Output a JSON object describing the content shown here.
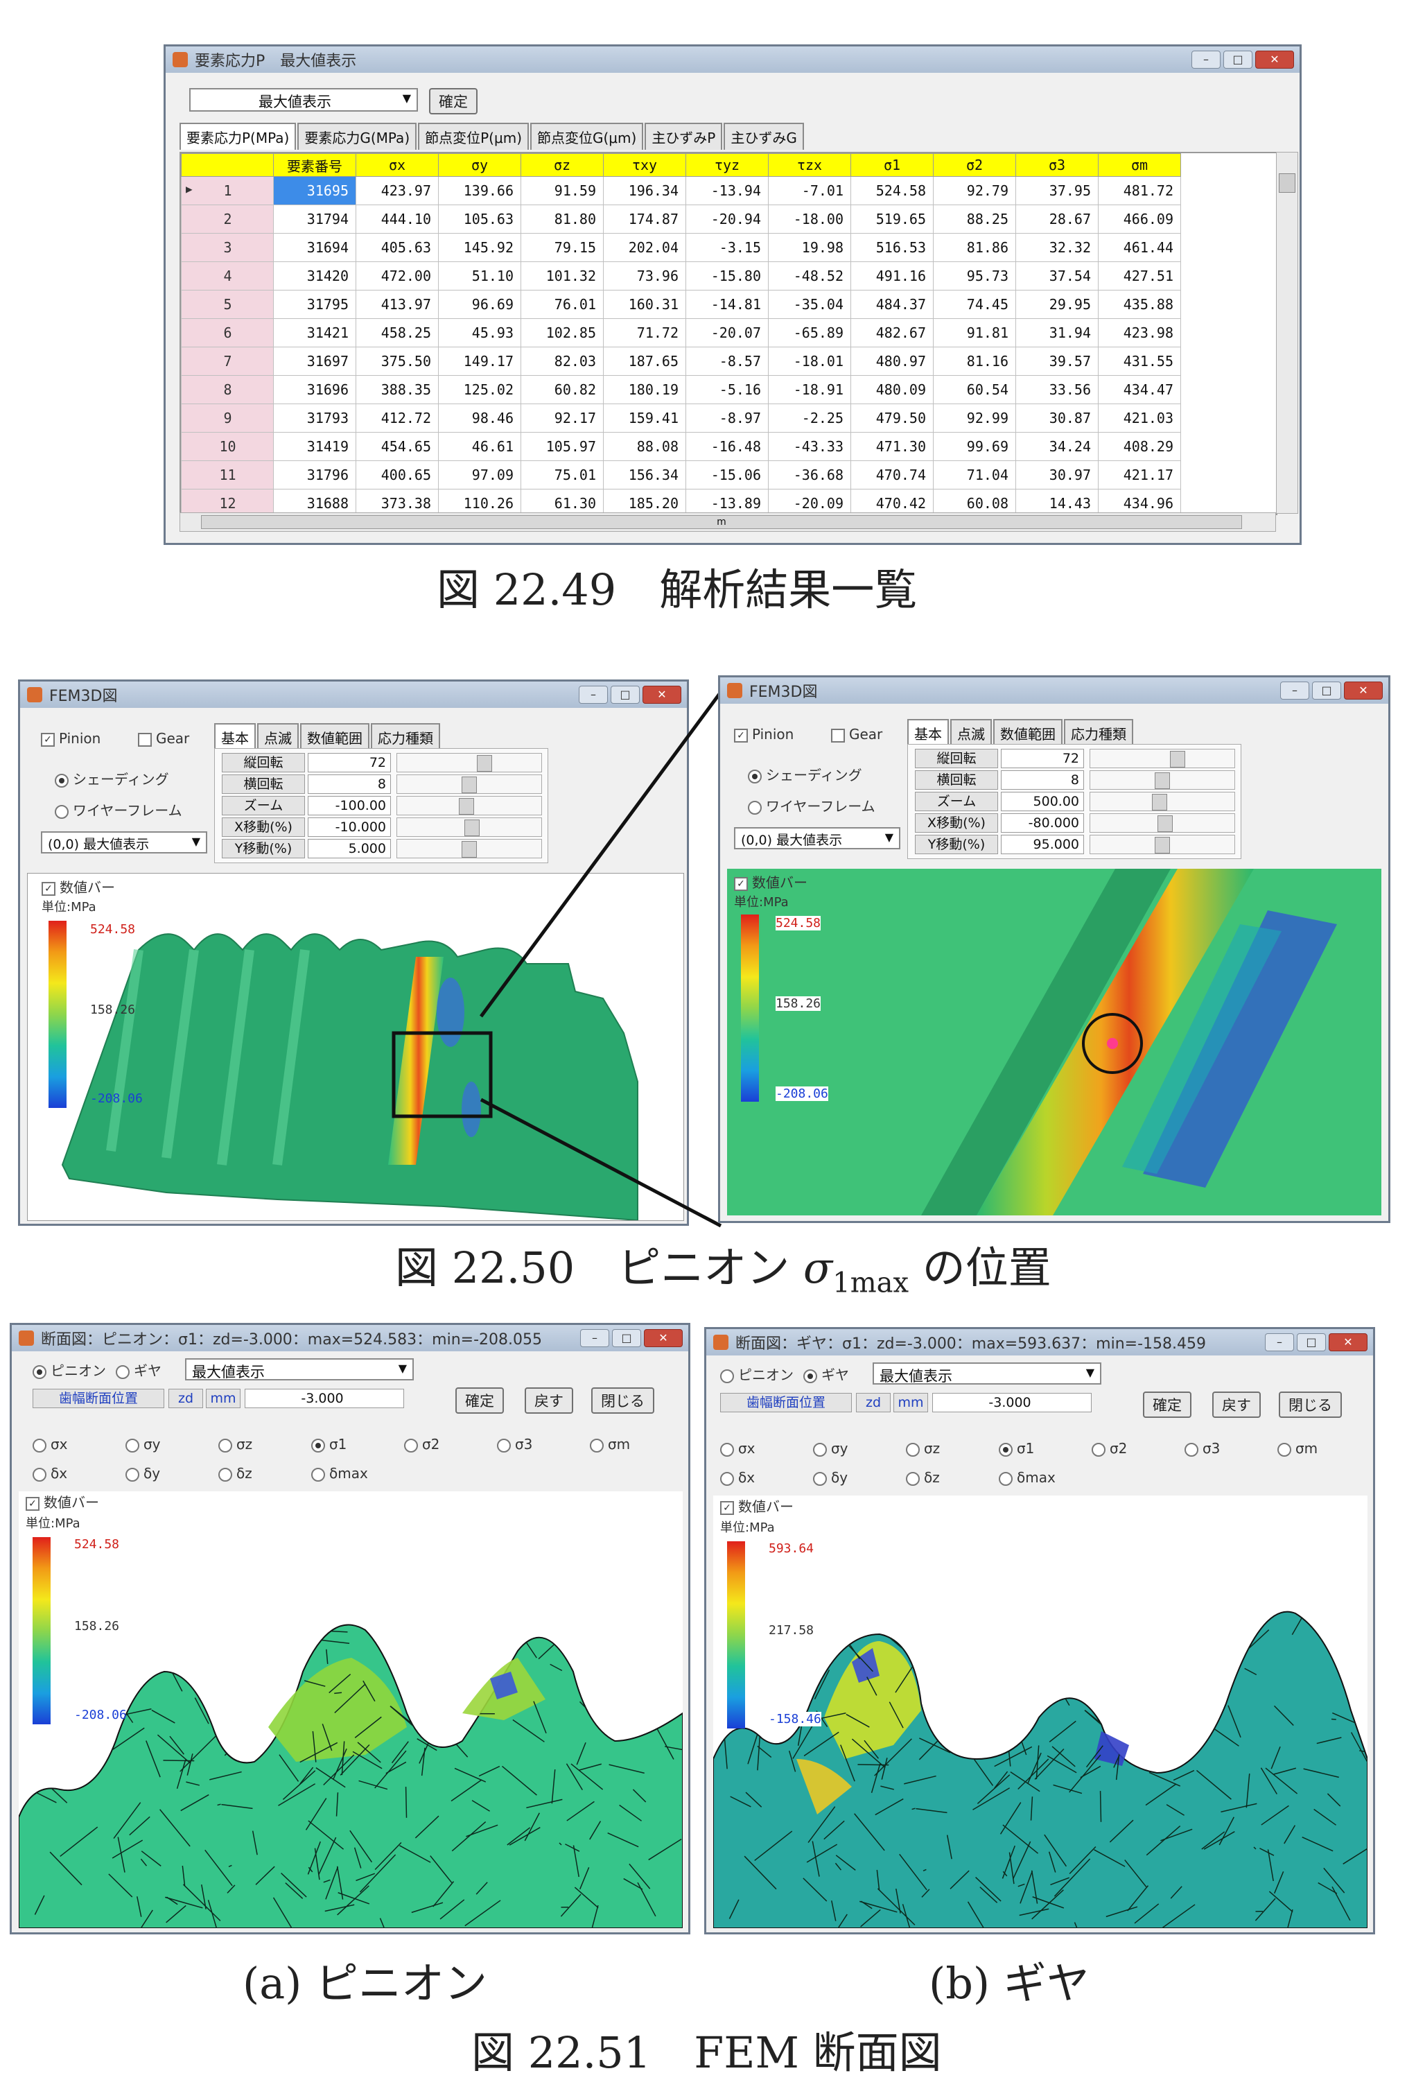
{
  "fig49": {
    "title": "要素応力P　最大値表示",
    "combo": "最大値表示",
    "confirm": "確定",
    "tabs": [
      "要素応力P(MPa)",
      "要素応力G(MPa)",
      "節点変位P(μm)",
      "節点変位G(μm)",
      "主ひずみP",
      "主ひずみG"
    ],
    "headers": [
      "",
      "要素番号",
      "σx",
      "σy",
      "σz",
      "τxy",
      "τyz",
      "τzx",
      "σ1",
      "σ2",
      "σ3",
      "σm"
    ],
    "rows": [
      [
        "1",
        "31695",
        "423.97",
        "139.66",
        "91.59",
        "196.34",
        "-13.94",
        "-7.01",
        "524.58",
        "92.79",
        "37.95",
        "481.72"
      ],
      [
        "2",
        "31794",
        "444.10",
        "105.63",
        "81.80",
        "174.87",
        "-20.94",
        "-18.00",
        "519.65",
        "88.25",
        "28.67",
        "466.09"
      ],
      [
        "3",
        "31694",
        "405.63",
        "145.92",
        "79.15",
        "202.04",
        "-3.15",
        "19.98",
        "516.53",
        "81.86",
        "32.32",
        "461.44"
      ],
      [
        "4",
        "31420",
        "472.00",
        "51.10",
        "101.32",
        "73.96",
        "-15.80",
        "-48.52",
        "491.16",
        "95.73",
        "37.54",
        "427.51"
      ],
      [
        "5",
        "31795",
        "413.97",
        "96.69",
        "76.01",
        "160.31",
        "-14.81",
        "-35.04",
        "484.37",
        "74.45",
        "29.95",
        "435.88"
      ],
      [
        "6",
        "31421",
        "458.25",
        "45.93",
        "102.85",
        "71.72",
        "-20.07",
        "-65.89",
        "482.67",
        "91.81",
        "31.94",
        "423.98"
      ],
      [
        "7",
        "31697",
        "375.50",
        "149.17",
        "82.03",
        "187.65",
        "-8.57",
        "-18.01",
        "480.97",
        "81.16",
        "39.57",
        "431.55"
      ],
      [
        "8",
        "31696",
        "388.35",
        "125.02",
        "60.82",
        "180.19",
        "-5.16",
        "-18.91",
        "480.09",
        "60.54",
        "33.56",
        "434.47"
      ],
      [
        "9",
        "31793",
        "412.72",
        "98.46",
        "92.17",
        "159.41",
        "-8.97",
        "-2.25",
        "479.50",
        "92.99",
        "30.87",
        "421.03"
      ],
      [
        "10",
        "31419",
        "454.65",
        "46.61",
        "105.97",
        "88.08",
        "-16.48",
        "-43.33",
        "471.30",
        "99.69",
        "34.24",
        "408.29"
      ],
      [
        "11",
        "31796",
        "400.65",
        "97.09",
        "75.01",
        "156.34",
        "-15.06",
        "-36.68",
        "470.74",
        "71.04",
        "30.97",
        "421.17"
      ],
      [
        "12",
        "31688",
        "373.38",
        "110.26",
        "61.30",
        "185.20",
        "-13.89",
        "-20.09",
        "470.42",
        "60.08",
        "14.43",
        "434.96"
      ]
    ],
    "hscroll_mark": "m",
    "caption": "図 22.49　解析結果一覧"
  },
  "fig50": {
    "left": {
      "title": "FEM3D図",
      "pinion": "Pinion",
      "gear": "Gear",
      "shading": "シェーディング",
      "wire": "ワイヤーフレーム",
      "combo": "(0,0) 最大値表示",
      "tabs": [
        "基本",
        "点滅",
        "数値範囲",
        "応力種類"
      ],
      "fields": [
        {
          "name": "縦回転",
          "value": "72"
        },
        {
          "name": "横回転",
          "value": "8"
        },
        {
          "name": "ズーム",
          "value": "-100.00"
        },
        {
          "name": "X移動(%)",
          "value": "-10.000"
        },
        {
          "name": "Y移動(%)",
          "value": "5.000"
        }
      ],
      "valuebar": "数値バー",
      "unit": "単位:MPa",
      "cmax": "524.58",
      "cmid": "158.26",
      "cmin": "-208.06"
    },
    "right": {
      "title": "FEM3D図",
      "pinion": "Pinion",
      "gear": "Gear",
      "shading": "シェーディング",
      "wire": "ワイヤーフレーム",
      "combo": "(0,0) 最大値表示",
      "tabs": [
        "基本",
        "点滅",
        "数値範囲",
        "応力種類"
      ],
      "fields": [
        {
          "name": "縦回転",
          "value": "72"
        },
        {
          "name": "横回転",
          "value": "8"
        },
        {
          "name": "ズーム",
          "value": "500.00"
        },
        {
          "name": "X移動(%)",
          "value": "-80.000"
        },
        {
          "name": "Y移動(%)",
          "value": "95.000"
        }
      ],
      "valuebar": "数値バー",
      "unit": "単位:MPa",
      "cmax": "524.58",
      "cmid": "158.26",
      "cmin": "-208.06"
    },
    "caption_pre": "図 22.50　ピニオン ",
    "caption_sigma": "σ",
    "caption_sub": "1max",
    "caption_post": " の位置"
  },
  "fig51": {
    "left": {
      "title": "断面図：ピニオン：σ1：zd=-3.000：max=524.583：min=-208.055",
      "pinion": "ピニオン",
      "gear": "ギヤ",
      "combo": "最大値表示",
      "pos_label": "歯幅断面位置",
      "zd": "zd",
      "unit_mm": "mm",
      "pos_value": "-3.000",
      "confirm": "確定",
      "back": "戻す",
      "close": "閉じる",
      "radios1": [
        "σx",
        "σy",
        "σz",
        "σ1",
        "σ2",
        "σ3",
        "σm"
      ],
      "radios2": [
        "δx",
        "δy",
        "δz",
        "δmax"
      ],
      "valuebar": "数値バー",
      "unit": "単位:MPa",
      "cmax": "524.58",
      "cmid": "158.26",
      "cmin": "-208.06"
    },
    "right": {
      "title": "断面図：ギヤ：σ1：zd=-3.000：max=593.637：min=-158.459",
      "pinion": "ピニオン",
      "gear": "ギヤ",
      "combo": "最大値表示",
      "pos_label": "歯幅断面位置",
      "zd": "zd",
      "unit_mm": "mm",
      "pos_value": "-3.000",
      "confirm": "確定",
      "back": "戻す",
      "close": "閉じる",
      "radios1": [
        "σx",
        "σy",
        "σz",
        "σ1",
        "σ2",
        "σ3",
        "σm"
      ],
      "radios2": [
        "δx",
        "δy",
        "δz",
        "δmax"
      ],
      "valuebar": "数値バー",
      "unit": "単位:MPa",
      "cmax": "593.64",
      "cmid": "217.58",
      "cmin": "-158.46"
    },
    "sub_a": "(a)  ピニオン",
    "sub_b": "(b)  ギヤ",
    "caption": "図 22.51　FEM 断面図"
  },
  "colors": {
    "header_yellow": "#ffff00",
    "row_header": "#f3d7e0",
    "selected": "#3d8ce8",
    "mesh_green": "#2dbf7a"
  }
}
